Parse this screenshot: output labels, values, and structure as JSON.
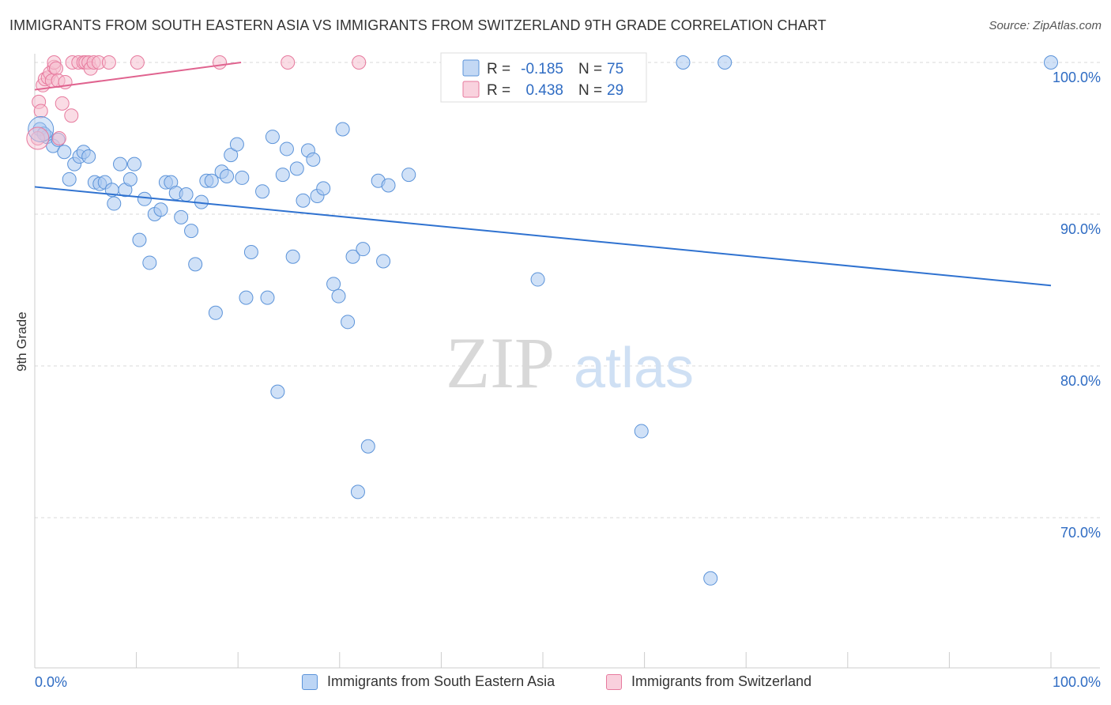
{
  "header": {
    "title": "IMMIGRANTS FROM SOUTH EASTERN ASIA VS IMMIGRANTS FROM SWITZERLAND 9TH GRADE CORRELATION CHART",
    "source": "Source: ZipAtlas.com"
  },
  "watermark": {
    "zip": "ZIP",
    "atlas": "atlas"
  },
  "colors": {
    "blue_fill": "#a9c8f0",
    "blue_stroke": "#5b93d9",
    "blue_line": "#2f72d0",
    "pink_fill": "#f6bfd0",
    "pink_stroke": "#e77a9e",
    "pink_line": "#e0638f",
    "axis_text": "#2f6cc3",
    "grid": "#d9d9d9"
  },
  "legend": {
    "rows": [
      {
        "r_label": "R =",
        "r_value": "-0.185",
        "n_label": "N =",
        "n_value": "75",
        "color": "blue"
      },
      {
        "r_label": "R =",
        "r_value": "0.438",
        "n_label": "N =",
        "n_value": "29",
        "color": "pink"
      }
    ]
  },
  "bottom_legend": [
    {
      "label": "Immigrants from South Eastern Asia",
      "color": "blue"
    },
    {
      "label": "Immigrants from Switzerland",
      "color": "pink"
    }
  ],
  "chart_data": {
    "type": "scatter",
    "title": "IMMIGRANTS FROM SOUTH EASTERN ASIA VS IMMIGRANTS FROM SWITZERLAND 9TH GRADE CORRELATION CHART",
    "xlabel": "",
    "ylabel": "9th Grade",
    "xlim": [
      0,
      100
    ],
    "ylim": [
      60,
      100
    ],
    "x_tick_labels": [
      "0.0%",
      "100.0%"
    ],
    "y_ticks": [
      {
        "value": 100,
        "label": "100.0%"
      },
      {
        "value": 90,
        "label": "90.0%"
      },
      {
        "value": 80,
        "label": "80.0%"
      },
      {
        "value": 70,
        "label": "70.0%"
      }
    ],
    "grid": true,
    "legend_position": "top-center",
    "series": [
      {
        "name": "Immigrants from South Eastern Asia",
        "color": "blue",
        "r": -0.185,
        "n": 75,
        "trend": {
          "x": [
            0,
            100
          ],
          "y": [
            91.8,
            85.3
          ]
        },
        "points": [
          [
            0.5,
            95.6
          ],
          [
            1.2,
            95.1
          ],
          [
            1.8,
            94.5
          ],
          [
            2.3,
            94.9
          ],
          [
            2.9,
            94.1
          ],
          [
            3.4,
            92.3
          ],
          [
            3.9,
            93.3
          ],
          [
            4.4,
            93.8
          ],
          [
            4.8,
            94.1
          ],
          [
            5.3,
            93.8
          ],
          [
            5.9,
            92.1
          ],
          [
            6.4,
            92.0
          ],
          [
            6.9,
            92.1
          ],
          [
            7.6,
            91.6
          ],
          [
            7.8,
            90.7
          ],
          [
            8.4,
            93.3
          ],
          [
            8.9,
            91.6
          ],
          [
            9.4,
            92.3
          ],
          [
            9.8,
            93.3
          ],
          [
            10.3,
            88.3
          ],
          [
            10.8,
            91.0
          ],
          [
            11.3,
            86.8
          ],
          [
            11.8,
            90.0
          ],
          [
            12.4,
            90.3
          ],
          [
            12.9,
            92.1
          ],
          [
            13.4,
            92.1
          ],
          [
            13.9,
            91.4
          ],
          [
            14.4,
            89.8
          ],
          [
            14.9,
            91.3
          ],
          [
            15.4,
            88.9
          ],
          [
            15.8,
            86.7
          ],
          [
            16.4,
            90.8
          ],
          [
            16.9,
            92.2
          ],
          [
            17.4,
            92.2
          ],
          [
            17.8,
            83.5
          ],
          [
            18.4,
            92.8
          ],
          [
            18.9,
            92.5
          ],
          [
            19.3,
            93.9
          ],
          [
            19.9,
            94.6
          ],
          [
            20.4,
            92.4
          ],
          [
            20.8,
            84.5
          ],
          [
            21.3,
            87.5
          ],
          [
            22.4,
            91.5
          ],
          [
            22.9,
            84.5
          ],
          [
            23.4,
            95.1
          ],
          [
            23.9,
            78.3
          ],
          [
            24.4,
            92.6
          ],
          [
            24.8,
            94.3
          ],
          [
            25.4,
            87.2
          ],
          [
            25.8,
            93.0
          ],
          [
            26.4,
            90.9
          ],
          [
            26.9,
            94.2
          ],
          [
            27.4,
            93.6
          ],
          [
            27.8,
            91.2
          ],
          [
            28.4,
            91.7
          ],
          [
            29.4,
            85.4
          ],
          [
            29.9,
            84.6
          ],
          [
            30.3,
            95.6
          ],
          [
            30.8,
            82.9
          ],
          [
            31.3,
            87.2
          ],
          [
            31.8,
            71.7
          ],
          [
            32.3,
            87.7
          ],
          [
            32.8,
            74.7
          ],
          [
            33.8,
            92.2
          ],
          [
            34.3,
            86.9
          ],
          [
            34.8,
            91.9
          ],
          [
            36.8,
            92.6
          ],
          [
            43.1,
            100.0
          ],
          [
            49.5,
            85.7
          ],
          [
            59.7,
            75.7
          ],
          [
            63.8,
            100.0
          ],
          [
            66.5,
            66.0
          ],
          [
            67.9,
            100.0
          ],
          [
            100.0,
            100.0
          ],
          [
            0.9,
            95.3
          ]
        ]
      },
      {
        "name": "Immigrants from Switzerland",
        "color": "pink",
        "r": 0.438,
        "n": 29,
        "trend": {
          "x": [
            0,
            20.3
          ],
          "y": [
            98.2,
            100.0
          ]
        },
        "points": [
          [
            0.3,
            95.0
          ],
          [
            0.4,
            97.4
          ],
          [
            0.6,
            96.8
          ],
          [
            0.8,
            98.5
          ],
          [
            1.0,
            98.9
          ],
          [
            1.3,
            99.0
          ],
          [
            1.5,
            99.3
          ],
          [
            1.7,
            98.8
          ],
          [
            1.9,
            99.7
          ],
          [
            1.9,
            100.0
          ],
          [
            2.1,
            99.6
          ],
          [
            2.3,
            98.8
          ],
          [
            2.4,
            95.0
          ],
          [
            2.7,
            97.3
          ],
          [
            3.0,
            98.7
          ],
          [
            3.6,
            96.5
          ],
          [
            3.7,
            100.0
          ],
          [
            4.3,
            100.0
          ],
          [
            4.8,
            100.0
          ],
          [
            5.0,
            100.0
          ],
          [
            5.3,
            100.0
          ],
          [
            5.5,
            99.6
          ],
          [
            5.8,
            100.0
          ],
          [
            6.3,
            100.0
          ],
          [
            7.3,
            100.0
          ],
          [
            10.1,
            100.0
          ],
          [
            18.2,
            100.0
          ],
          [
            24.9,
            100.0
          ],
          [
            31.9,
            100.0
          ]
        ]
      }
    ]
  }
}
